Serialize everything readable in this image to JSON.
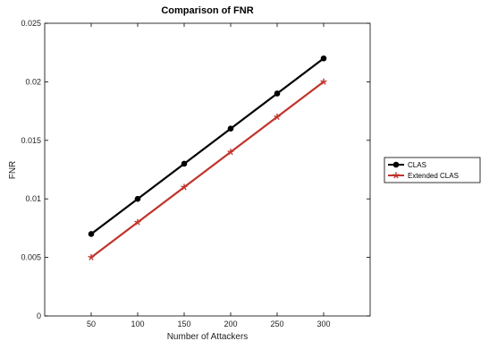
{
  "chart_data": {
    "type": "line",
    "title": "Comparison of FNR",
    "xlabel": "Number of Attackers",
    "ylabel": "FNR",
    "xlim": [
      0,
      350
    ],
    "ylim": [
      0,
      0.025
    ],
    "xticks": [
      "50",
      "100",
      "150",
      "200",
      "250",
      "300"
    ],
    "yticks": [
      "0",
      "0.005",
      "0.01",
      "0.015",
      "0.02",
      "0.025"
    ],
    "grid": false,
    "legend_position": "outside-right",
    "x": [
      50,
      100,
      150,
      200,
      250,
      300
    ],
    "series": [
      {
        "name": "CLAS",
        "values": [
          0.007,
          0.01,
          0.013,
          0.016,
          0.019,
          0.022
        ],
        "color": "#000000",
        "marker": "circle"
      },
      {
        "name": "Extended CLAS",
        "values": [
          0.005,
          0.008,
          0.011,
          0.014,
          0.017,
          0.02
        ],
        "color": "#c0332b",
        "marker": "star"
      }
    ]
  }
}
